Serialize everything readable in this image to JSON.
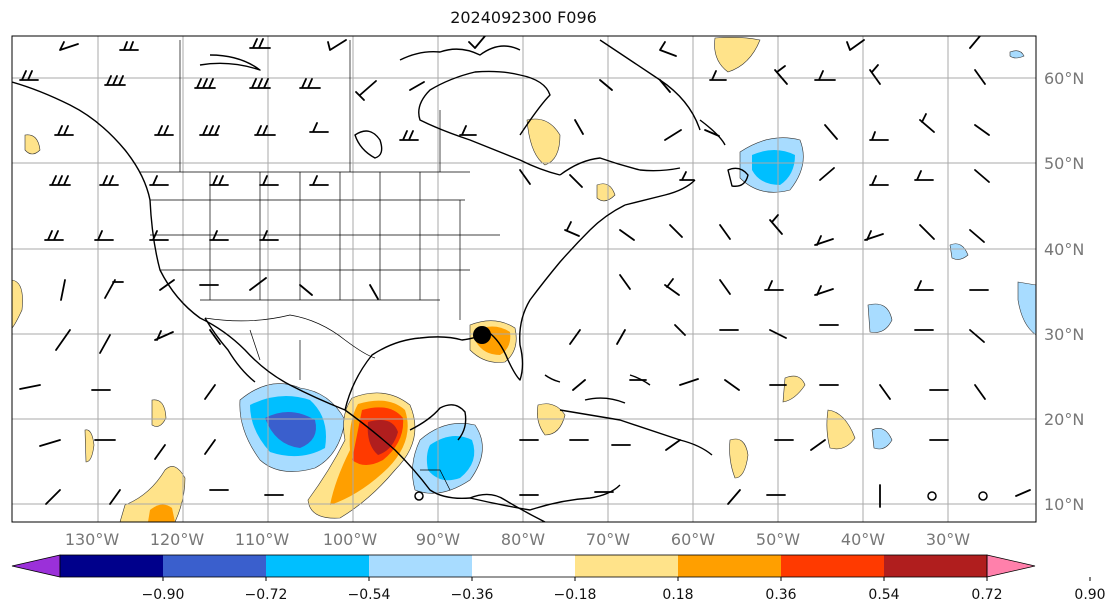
{
  "map": {
    "title": "2024092300 F096",
    "lon_labels": [
      "130°W",
      "120°W",
      "110°W",
      "100°W",
      "90°W",
      "80°W",
      "70°W",
      "60°W",
      "50°W",
      "40°W",
      "30°W"
    ],
    "lat_labels": [
      "60°N",
      "50°N",
      "40°N",
      "30°N",
      "20°N",
      "10°N"
    ],
    "storm_marker": "storm-center-marker"
  },
  "colorbar": {
    "ticks": [
      "−0.90",
      "−0.72",
      "−0.54",
      "−0.36",
      "−0.18",
      "0.18",
      "0.36",
      "0.54",
      "0.72",
      "0.90"
    ],
    "colors": [
      "#9b30d9",
      "#00008b",
      "#3a5fcd",
      "#00bfff",
      "#a8dcff",
      "#ffffff",
      "#ffe38a",
      "#ff9f00",
      "#ff3a00",
      "#b01e1e",
      "#ff80ab"
    ]
  }
}
